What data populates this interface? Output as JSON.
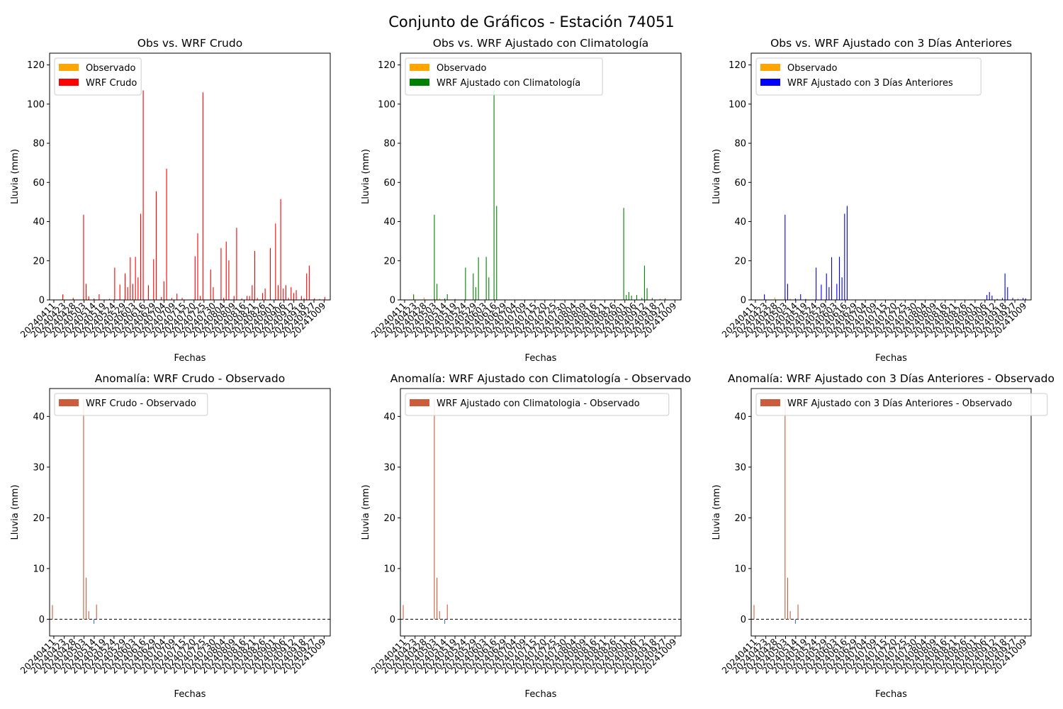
{
  "figure": {
    "title": "Conjunto de Gráficos - Estación 74051"
  },
  "date_labels": [
    "20240411",
    "20240423",
    "20240428",
    "20240503",
    "20240514",
    "20240519",
    "20240524",
    "20240529",
    "20240603",
    "20240616",
    "20240629",
    "20240704",
    "20240709",
    "20240715",
    "20240720",
    "20240725",
    "20240730",
    "20240804",
    "20240809",
    "20240816",
    "20240821",
    "20240826",
    "20240901",
    "20240906",
    "20240912",
    "20240918",
    "20240927",
    "20241009"
  ],
  "chart_data": [
    {
      "type": "bar",
      "title": "Obs vs. WRF Crudo",
      "xlabel": "Fechas",
      "ylabel": "Lluvia (mm)",
      "ylim": [
        0,
        126
      ],
      "yticks": [
        0,
        20,
        40,
        60,
        80,
        100,
        120
      ],
      "legend_position": "upper-left",
      "series": [
        {
          "name": "Observado",
          "color": "#ffa500",
          "points": [
            [
              4,
              2.8
            ],
            [
              8,
              1.3
            ],
            [
              12,
              1.7
            ],
            [
              14,
              0.7
            ]
          ]
        },
        {
          "name": "WRF Crudo",
          "color": "#ff0000",
          "points": [
            [
              4,
              2.8
            ],
            [
              8,
              0.8
            ],
            [
              12,
              43.5
            ],
            [
              13,
              8.2
            ],
            [
              14,
              1.8
            ],
            [
              16,
              0.7
            ],
            [
              18,
              2.9
            ],
            [
              22,
              0.5
            ],
            [
              24,
              16.5
            ],
            [
              26,
              7.8
            ],
            [
              28,
              13.5
            ],
            [
              29,
              6.5
            ],
            [
              30,
              21.8
            ],
            [
              31,
              8.2
            ],
            [
              32,
              22.0
            ],
            [
              33,
              11.5
            ],
            [
              34,
              44.0
            ],
            [
              35,
              107.0
            ],
            [
              37,
              7.5
            ],
            [
              39,
              20.8
            ],
            [
              40,
              55.5
            ],
            [
              42,
              1.5
            ],
            [
              43,
              9.5
            ],
            [
              44,
              67.0
            ],
            [
              46,
              1.0
            ],
            [
              48,
              3.2
            ],
            [
              50,
              1.0
            ],
            [
              55,
              22.3
            ],
            [
              56,
              34.0
            ],
            [
              57,
              2.0
            ],
            [
              58,
              106.0
            ],
            [
              61,
              15.5
            ],
            [
              62,
              6.5
            ],
            [
              65,
              26.5
            ],
            [
              66,
              1.0
            ],
            [
              67,
              29.8
            ],
            [
              68,
              20.2
            ],
            [
              70,
              2.0
            ],
            [
              71,
              36.8
            ],
            [
              73,
              0.8
            ],
            [
              75,
              2.0
            ],
            [
              76,
              2.0
            ],
            [
              77,
              7.5
            ],
            [
              78,
              25.0
            ],
            [
              79,
              1.0
            ],
            [
              81,
              3.5
            ],
            [
              82,
              5.8
            ],
            [
              84,
              26.5
            ],
            [
              86,
              39.0
            ],
            [
              87,
              7.5
            ],
            [
              88,
              51.5
            ],
            [
              89,
              5.8
            ],
            [
              90,
              7.5
            ],
            [
              91,
              1.0
            ],
            [
              92,
              6.5
            ],
            [
              93,
              3.5
            ],
            [
              94,
              5.0
            ],
            [
              96,
              2.0
            ],
            [
              97,
              0.8
            ],
            [
              98,
              13.5
            ],
            [
              99,
              17.5
            ],
            [
              101,
              0.8
            ],
            [
              103,
              0.5
            ],
            [
              105,
              1.5
            ]
          ]
        }
      ]
    },
    {
      "type": "bar",
      "title": "Obs vs. WRF Ajustado con Climatología",
      "xlabel": "Fechas",
      "ylabel": "Lluvia (mm)",
      "ylim": [
        0,
        126
      ],
      "yticks": [
        0,
        20,
        40,
        60,
        80,
        100,
        120
      ],
      "legend_position": "upper-left",
      "series": [
        {
          "name": "Observado",
          "color": "#ffa500",
          "points": [
            [
              4,
              2.8
            ],
            [
              8,
              1.3
            ],
            [
              12,
              1.7
            ],
            [
              14,
              0.7
            ]
          ]
        },
        {
          "name": "WRF Ajustado con Climatología",
          "color": "#008000",
          "points": [
            [
              4,
              2.8
            ],
            [
              12,
              43.5
            ],
            [
              13,
              8.2
            ],
            [
              16,
              0.7
            ],
            [
              17,
              2.9
            ],
            [
              20,
              0.5
            ],
            [
              24,
              16.5
            ],
            [
              27,
              13.5
            ],
            [
              28,
              6.5
            ],
            [
              29,
              21.8
            ],
            [
              32,
              22.0
            ],
            [
              33,
              11.5
            ],
            [
              35,
              107.0
            ],
            [
              36,
              48.0
            ],
            [
              85,
              47.0
            ],
            [
              86,
              2.5
            ],
            [
              87,
              4.0
            ],
            [
              88,
              2.2
            ],
            [
              90,
              2.5
            ],
            [
              92,
              1.0
            ],
            [
              93,
              17.5
            ],
            [
              94,
              6.0
            ],
            [
              96,
              1.0
            ],
            [
              99,
              0.5
            ],
            [
              101,
              0.8
            ]
          ]
        }
      ]
    },
    {
      "type": "bar",
      "title": "Obs vs. WRF Ajustado con 3 Días Anteriores",
      "xlabel": "Fechas",
      "ylabel": "Lluvia (mm)",
      "ylim": [
        0,
        126
      ],
      "yticks": [
        0,
        20,
        40,
        60,
        80,
        100,
        120
      ],
      "legend_position": "upper-left",
      "series": [
        {
          "name": "Observado",
          "color": "#ffa500",
          "points": [
            [
              4,
              2.8
            ],
            [
              8,
              1.3
            ],
            [
              12,
              1.7
            ],
            [
              14,
              0.7
            ]
          ]
        },
        {
          "name": "WRF Ajustado con 3 Días Anteriores",
          "color": "#0000ff",
          "points": [
            [
              4,
              2.8
            ],
            [
              12,
              43.5
            ],
            [
              13,
              8.2
            ],
            [
              16,
              0.7
            ],
            [
              18,
              2.9
            ],
            [
              20,
              0.5
            ],
            [
              24,
              16.5
            ],
            [
              26,
              7.8
            ],
            [
              28,
              13.5
            ],
            [
              29,
              6.5
            ],
            [
              30,
              21.8
            ],
            [
              32,
              8.2
            ],
            [
              33,
              22.0
            ],
            [
              34,
              11.5
            ],
            [
              35,
              44.0
            ],
            [
              36,
              48.0
            ],
            [
              90,
              2.5
            ],
            [
              91,
              4.0
            ],
            [
              92,
              2.2
            ],
            [
              94,
              0.5
            ],
            [
              96,
              1.0
            ],
            [
              97,
              13.5
            ],
            [
              98,
              6.5
            ],
            [
              100,
              1.0
            ],
            [
              102,
              0.5
            ],
            [
              104,
              1.0
            ],
            [
              105,
              0.8
            ]
          ]
        }
      ]
    },
    {
      "type": "bar",
      "title": "Anomalía: WRF Crudo - Observado",
      "xlabel": "Fechas",
      "ylabel": "Lluvia (mm)",
      "ylim": [
        -3.3,
        45.5
      ],
      "yticks": [
        0,
        10,
        20,
        30,
        40
      ],
      "zero_line": true,
      "legend_position": "upper-left",
      "series": [
        {
          "name": "WRF Crudo - Observado",
          "color": "#cd5c3c",
          "points": [
            [
              0,
              2.8
            ],
            [
              12,
              43.5
            ],
            [
              13,
              8.2
            ],
            [
              14,
              1.6
            ],
            [
              16,
              -0.9
            ],
            [
              17,
              2.9
            ]
          ]
        }
      ]
    },
    {
      "type": "bar",
      "title": "Anomalía: WRF Ajustado con Climatología - Observado",
      "xlabel": "Fechas",
      "ylabel": "Lluvia (mm)",
      "ylim": [
        -3.3,
        45.5
      ],
      "yticks": [
        0,
        10,
        20,
        30,
        40
      ],
      "zero_line": true,
      "legend_position": "upper-left",
      "series": [
        {
          "name": "WRF Ajustado con Climatologia - Observado",
          "color": "#cd5c3c",
          "points": [
            [
              0,
              2.8
            ],
            [
              12,
              43.5
            ],
            [
              13,
              8.2
            ],
            [
              14,
              1.6
            ],
            [
              16,
              -0.9
            ],
            [
              17,
              2.9
            ]
          ]
        }
      ]
    },
    {
      "type": "bar",
      "title": "Anomalía: WRF Ajustado con 3 Días Anteriores - Observado",
      "xlabel": "Fechas",
      "ylabel": "Lluvia (mm)",
      "ylim": [
        -3.3,
        45.5
      ],
      "yticks": [
        0,
        10,
        20,
        30,
        40
      ],
      "zero_line": true,
      "legend_position": "upper-left",
      "series": [
        {
          "name": "WRF Ajustado con 3 Días Anteriores - Observado",
          "color": "#cd5c3c",
          "points": [
            [
              0,
              2.8
            ],
            [
              12,
              43.5
            ],
            [
              13,
              8.2
            ],
            [
              14,
              1.6
            ],
            [
              16,
              -0.9
            ],
            [
              17,
              2.9
            ]
          ]
        }
      ]
    }
  ]
}
